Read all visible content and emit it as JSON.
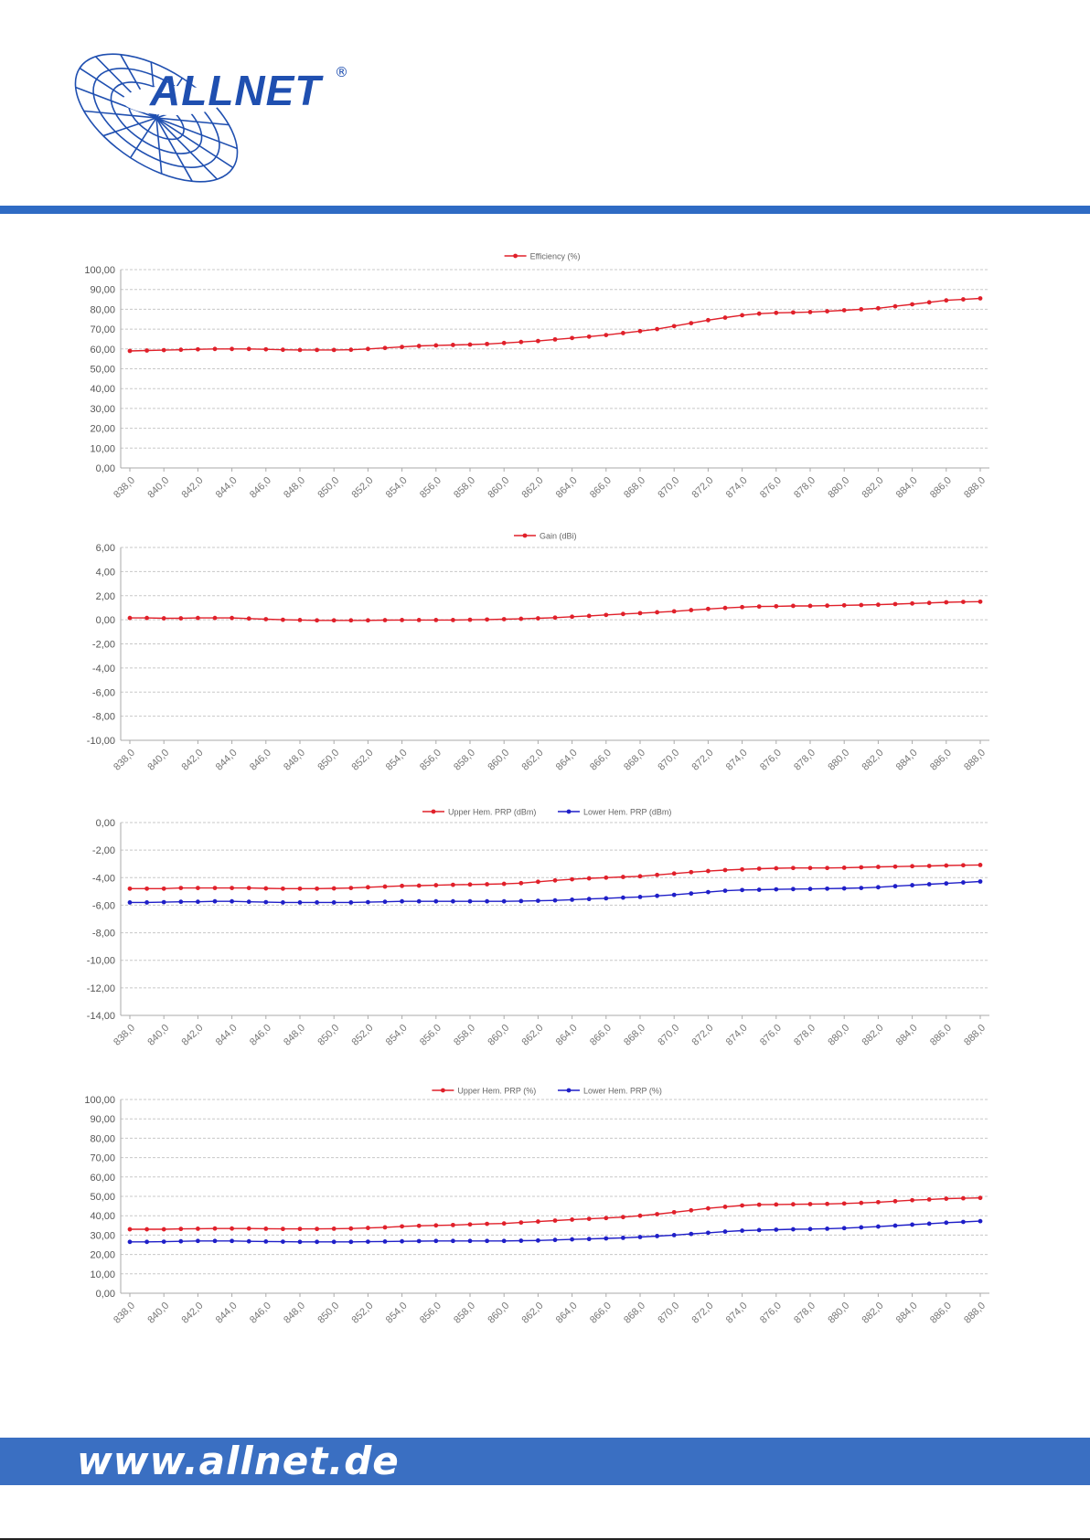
{
  "header": {
    "brand": "ALLNET",
    "registered_mark": "®",
    "colors": {
      "brand_blue": "#2f6bc4",
      "footer_blue": "#3a6fc2"
    }
  },
  "footer": {
    "url": "www.allnet.de"
  },
  "chart_data": [
    {
      "type": "line",
      "x": [
        838,
        839,
        840,
        841,
        842,
        843,
        844,
        845,
        846,
        847,
        848,
        849,
        850,
        851,
        852,
        853,
        854,
        855,
        856,
        857,
        858,
        859,
        860,
        861,
        862,
        863,
        864,
        865,
        866,
        867,
        868,
        869,
        870,
        871,
        872,
        873,
        874,
        875,
        876,
        877,
        878,
        879,
        880,
        881,
        882,
        883,
        884,
        885,
        886,
        887,
        888
      ],
      "x_ticks": [
        "838,0",
        "840,0",
        "842,0",
        "844,0",
        "846,0",
        "848,0",
        "850,0",
        "852,0",
        "854,0",
        "856,0",
        "858,0",
        "860,0",
        "862,0",
        "864,0",
        "866,0",
        "868,0",
        "870,0",
        "872,0",
        "874,0",
        "876,0",
        "878,0",
        "880,0",
        "882,0",
        "884,0",
        "886,0",
        "888,0"
      ],
      "y_ticks": [
        "100,00",
        "90,00",
        "80,00",
        "70,00",
        "60,00",
        "50,00",
        "40,00",
        "30,00",
        "20,00",
        "10,00",
        "0,00"
      ],
      "ylim": [
        0,
        100
      ],
      "grid": true,
      "legend": "top-center",
      "series": [
        {
          "name": "Efficiency (%)",
          "color": "#e0202a",
          "values": [
            59.0,
            59.2,
            59.4,
            59.6,
            59.8,
            60.0,
            60.0,
            60.0,
            59.8,
            59.6,
            59.5,
            59.5,
            59.5,
            59.6,
            60.0,
            60.5,
            61.0,
            61.5,
            61.8,
            62.0,
            62.2,
            62.5,
            63.0,
            63.5,
            64.0,
            64.8,
            65.5,
            66.2,
            67.0,
            68.0,
            69.0,
            70.0,
            71.5,
            73.0,
            74.5,
            75.8,
            77.0,
            77.8,
            78.2,
            78.4,
            78.6,
            79.0,
            79.5,
            80.0,
            80.5,
            81.5,
            82.5,
            83.5,
            84.5,
            85.0,
            85.5
          ]
        }
      ]
    },
    {
      "type": "line",
      "x": [
        838,
        839,
        840,
        841,
        842,
        843,
        844,
        845,
        846,
        847,
        848,
        849,
        850,
        851,
        852,
        853,
        854,
        855,
        856,
        857,
        858,
        859,
        860,
        861,
        862,
        863,
        864,
        865,
        866,
        867,
        868,
        869,
        870,
        871,
        872,
        873,
        874,
        875,
        876,
        877,
        878,
        879,
        880,
        881,
        882,
        883,
        884,
        885,
        886,
        887,
        888
      ],
      "x_ticks": [
        "838,0",
        "840,0",
        "842,0",
        "844,0",
        "846,0",
        "848,0",
        "850,0",
        "852,0",
        "854,0",
        "856,0",
        "858,0",
        "860,0",
        "862,0",
        "864,0",
        "866,0",
        "868,0",
        "870,0",
        "872,0",
        "874,0",
        "876,0",
        "878,0",
        "880,0",
        "882,0",
        "884,0",
        "886,0",
        "888,0"
      ],
      "y_ticks": [
        "6,00",
        "4,00",
        "2,00",
        "0,00",
        "-2,00",
        "-4,00",
        "-6,00",
        "-8,00",
        "-10,00"
      ],
      "ylim": [
        -10,
        6
      ],
      "grid": true,
      "legend": "top-center",
      "series": [
        {
          "name": "Gain (dBi)",
          "color": "#e0202a",
          "values": [
            0.15,
            0.15,
            0.12,
            0.12,
            0.15,
            0.15,
            0.15,
            0.1,
            0.05,
            0.0,
            -0.02,
            -0.05,
            -0.05,
            -0.05,
            -0.05,
            -0.03,
            -0.02,
            -0.02,
            -0.02,
            -0.02,
            0.0,
            0.02,
            0.05,
            0.08,
            0.12,
            0.18,
            0.25,
            0.32,
            0.4,
            0.48,
            0.55,
            0.62,
            0.7,
            0.8,
            0.9,
            0.98,
            1.05,
            1.1,
            1.12,
            1.15,
            1.15,
            1.17,
            1.2,
            1.22,
            1.25,
            1.3,
            1.35,
            1.4,
            1.45,
            1.48,
            1.5
          ]
        }
      ]
    },
    {
      "type": "line",
      "x": [
        838,
        839,
        840,
        841,
        842,
        843,
        844,
        845,
        846,
        847,
        848,
        849,
        850,
        851,
        852,
        853,
        854,
        855,
        856,
        857,
        858,
        859,
        860,
        861,
        862,
        863,
        864,
        865,
        866,
        867,
        868,
        869,
        870,
        871,
        872,
        873,
        874,
        875,
        876,
        877,
        878,
        879,
        880,
        881,
        882,
        883,
        884,
        885,
        886,
        887,
        888
      ],
      "x_ticks": [
        "838,0",
        "840,0",
        "842,0",
        "844,0",
        "846,0",
        "848,0",
        "850,0",
        "852,0",
        "854,0",
        "856,0",
        "858,0",
        "860,0",
        "862,0",
        "864,0",
        "866,0",
        "868,0",
        "870,0",
        "872,0",
        "874,0",
        "876,0",
        "878,0",
        "880,0",
        "882,0",
        "884,0",
        "886,0",
        "888,0"
      ],
      "y_ticks": [
        "0,00",
        "-2,00",
        "-4,00",
        "-6,00",
        "-8,00",
        "-10,00",
        "-12,00",
        "-14,00"
      ],
      "ylim": [
        -14,
        0
      ],
      "grid": true,
      "legend": "top-center",
      "series": [
        {
          "name": "Upper Hem. PRP (dBm)",
          "color": "#e0202a",
          "values": [
            -4.8,
            -4.8,
            -4.8,
            -4.75,
            -4.75,
            -4.75,
            -4.75,
            -4.75,
            -4.78,
            -4.8,
            -4.8,
            -4.8,
            -4.78,
            -4.75,
            -4.7,
            -4.65,
            -4.6,
            -4.58,
            -4.55,
            -4.52,
            -4.5,
            -4.48,
            -4.45,
            -4.4,
            -4.3,
            -4.2,
            -4.12,
            -4.05,
            -4.0,
            -3.95,
            -3.9,
            -3.8,
            -3.7,
            -3.6,
            -3.52,
            -3.45,
            -3.4,
            -3.35,
            -3.32,
            -3.3,
            -3.3,
            -3.3,
            -3.28,
            -3.25,
            -3.22,
            -3.2,
            -3.17,
            -3.15,
            -3.12,
            -3.1,
            -3.08
          ]
        },
        {
          "name": "Lower Hem. PRP (dBm)",
          "color": "#1f1fc8",
          "values": [
            -5.8,
            -5.8,
            -5.78,
            -5.75,
            -5.75,
            -5.72,
            -5.72,
            -5.75,
            -5.78,
            -5.8,
            -5.8,
            -5.8,
            -5.8,
            -5.8,
            -5.78,
            -5.75,
            -5.72,
            -5.72,
            -5.72,
            -5.72,
            -5.72,
            -5.72,
            -5.72,
            -5.7,
            -5.68,
            -5.65,
            -5.6,
            -5.55,
            -5.5,
            -5.45,
            -5.4,
            -5.32,
            -5.25,
            -5.15,
            -5.05,
            -4.95,
            -4.9,
            -4.88,
            -4.85,
            -4.83,
            -4.82,
            -4.8,
            -4.78,
            -4.75,
            -4.7,
            -4.62,
            -4.55,
            -4.48,
            -4.42,
            -4.35,
            -4.28
          ]
        }
      ]
    },
    {
      "type": "line",
      "x": [
        838,
        839,
        840,
        841,
        842,
        843,
        844,
        845,
        846,
        847,
        848,
        849,
        850,
        851,
        852,
        853,
        854,
        855,
        856,
        857,
        858,
        859,
        860,
        861,
        862,
        863,
        864,
        865,
        866,
        867,
        868,
        869,
        870,
        871,
        872,
        873,
        874,
        875,
        876,
        877,
        878,
        879,
        880,
        881,
        882,
        883,
        884,
        885,
        886,
        887,
        888
      ],
      "x_ticks": [
        "838,0",
        "840,0",
        "842,0",
        "844,0",
        "846,0",
        "848,0",
        "850,0",
        "852,0",
        "854,0",
        "856,0",
        "858,0",
        "860,0",
        "862,0",
        "864,0",
        "866,0",
        "868,0",
        "870,0",
        "872,0",
        "874,0",
        "876,0",
        "878,0",
        "880,0",
        "882,0",
        "884,0",
        "886,0",
        "888,0"
      ],
      "y_ticks": [
        "100,00",
        "90,00",
        "80,00",
        "70,00",
        "60,00",
        "50,00",
        "40,00",
        "30,00",
        "20,00",
        "10,00",
        "0,00"
      ],
      "ylim": [
        0,
        100
      ],
      "grid": true,
      "legend": "top-center",
      "series": [
        {
          "name": "Upper Hem. PRP (%)",
          "color": "#e0202a",
          "values": [
            33.0,
            33.0,
            33.0,
            33.2,
            33.3,
            33.4,
            33.4,
            33.4,
            33.3,
            33.2,
            33.2,
            33.2,
            33.3,
            33.4,
            33.7,
            34.0,
            34.5,
            34.8,
            35.0,
            35.2,
            35.5,
            35.8,
            36.0,
            36.5,
            37.0,
            37.5,
            38.0,
            38.4,
            38.8,
            39.3,
            40.0,
            40.8,
            41.8,
            42.8,
            43.8,
            44.6,
            45.3,
            45.7,
            45.8,
            45.9,
            46.0,
            46.1,
            46.3,
            46.6,
            47.0,
            47.5,
            48.0,
            48.4,
            48.8,
            49.0,
            49.2
          ]
        },
        {
          "name": "Lower Hem. PRP (%)",
          "color": "#1f1fc8",
          "values": [
            26.5,
            26.5,
            26.6,
            26.8,
            27.0,
            27.0,
            27.0,
            26.8,
            26.7,
            26.6,
            26.5,
            26.5,
            26.5,
            26.5,
            26.6,
            26.7,
            26.8,
            26.9,
            27.0,
            27.0,
            27.0,
            27.0,
            27.0,
            27.1,
            27.2,
            27.5,
            27.8,
            28.0,
            28.3,
            28.6,
            29.0,
            29.5,
            30.0,
            30.6,
            31.2,
            31.8,
            32.3,
            32.6,
            32.8,
            33.0,
            33.1,
            33.3,
            33.6,
            34.0,
            34.4,
            34.9,
            35.4,
            35.9,
            36.4,
            36.8,
            37.2
          ]
        }
      ]
    }
  ]
}
